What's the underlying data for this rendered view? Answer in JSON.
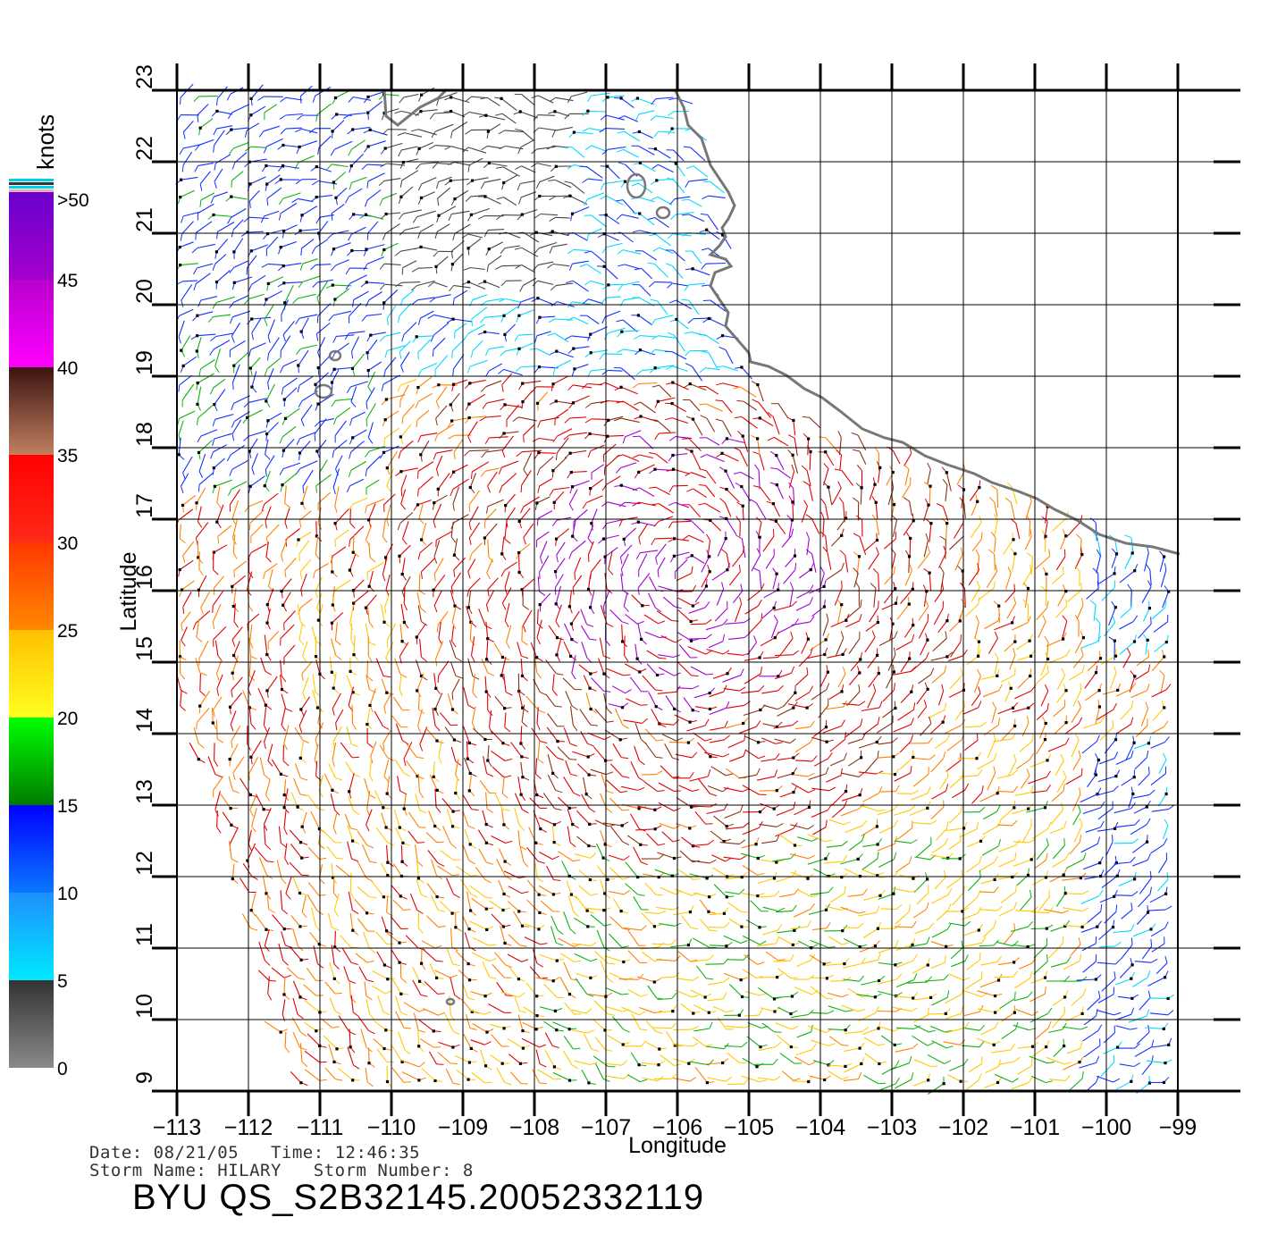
{
  "colorbar": {
    "unit_label": "knots",
    "tick_labels": [
      "0",
      "5",
      "10",
      "15",
      "20",
      "25",
      "30",
      "35",
      "40",
      "45",
      ">50"
    ],
    "stops": [
      {
        "from": 0,
        "to": 5,
        "top": "#333333",
        "bottom": "#8a8a8a"
      },
      {
        "from": 5,
        "to": 10,
        "top": "#1e90ff",
        "bottom": "#00e8ff"
      },
      {
        "from": 10,
        "to": 15,
        "top": "#0000ff",
        "bottom": "#0b78ff"
      },
      {
        "from": 15,
        "to": 20,
        "top": "#00ff00",
        "bottom": "#007a00"
      },
      {
        "from": 20,
        "to": 25,
        "top": "#ffc000",
        "bottom": "#ffff20"
      },
      {
        "from": 25,
        "to": 30,
        "top": "#ff3800",
        "bottom": "#ff8800"
      },
      {
        "from": 30,
        "to": 35,
        "top": "#ff0000",
        "bottom": "#ff2b1a"
      },
      {
        "from": 35,
        "to": 40,
        "top": "#3d1310",
        "bottom": "#c08060"
      },
      {
        "from": 40,
        "to": 45,
        "top": "#b800cc",
        "bottom": "#ff00ff"
      },
      {
        "from": 45,
        "to": 50,
        "top": "#6a00cc",
        "bottom": "#a400cc"
      }
    ]
  },
  "map": {
    "lon_ticks": [
      "−113",
      "−112",
      "−111",
      "−110",
      "−109",
      "−108",
      "−107",
      "−106",
      "−105",
      "−104",
      "−103",
      "−102",
      "−101",
      "−100",
      "−99"
    ],
    "lat_ticks": [
      "9",
      "10",
      "11",
      "12",
      "13",
      "14",
      "15",
      "16",
      "17",
      "18",
      "19",
      "20",
      "21",
      "22",
      "23"
    ],
    "xlabel": "Longitude",
    "ylabel": "Latitude",
    "lon_range": [
      -113,
      -98.5
    ],
    "lat_range": [
      9,
      23
    ],
    "grid": true,
    "coast_color": "#777777",
    "vector_colors": {
      "calm": "#444444",
      "cyan": "#00d8ff",
      "blue": "#1030ff",
      "green": "#10b010",
      "yellow": "#ffc800",
      "orange": "#ff8000",
      "red": "#e00000",
      "brown": "#8a3010",
      "purple": "#a000d0"
    }
  },
  "footer": {
    "date_line": "Date: 08/21/05   Time: 12:46:35",
    "storm_line": "Storm Name: HILARY   Storm Number: 8",
    "id_line": "BYU QS_S2B32145.20052332119"
  }
}
